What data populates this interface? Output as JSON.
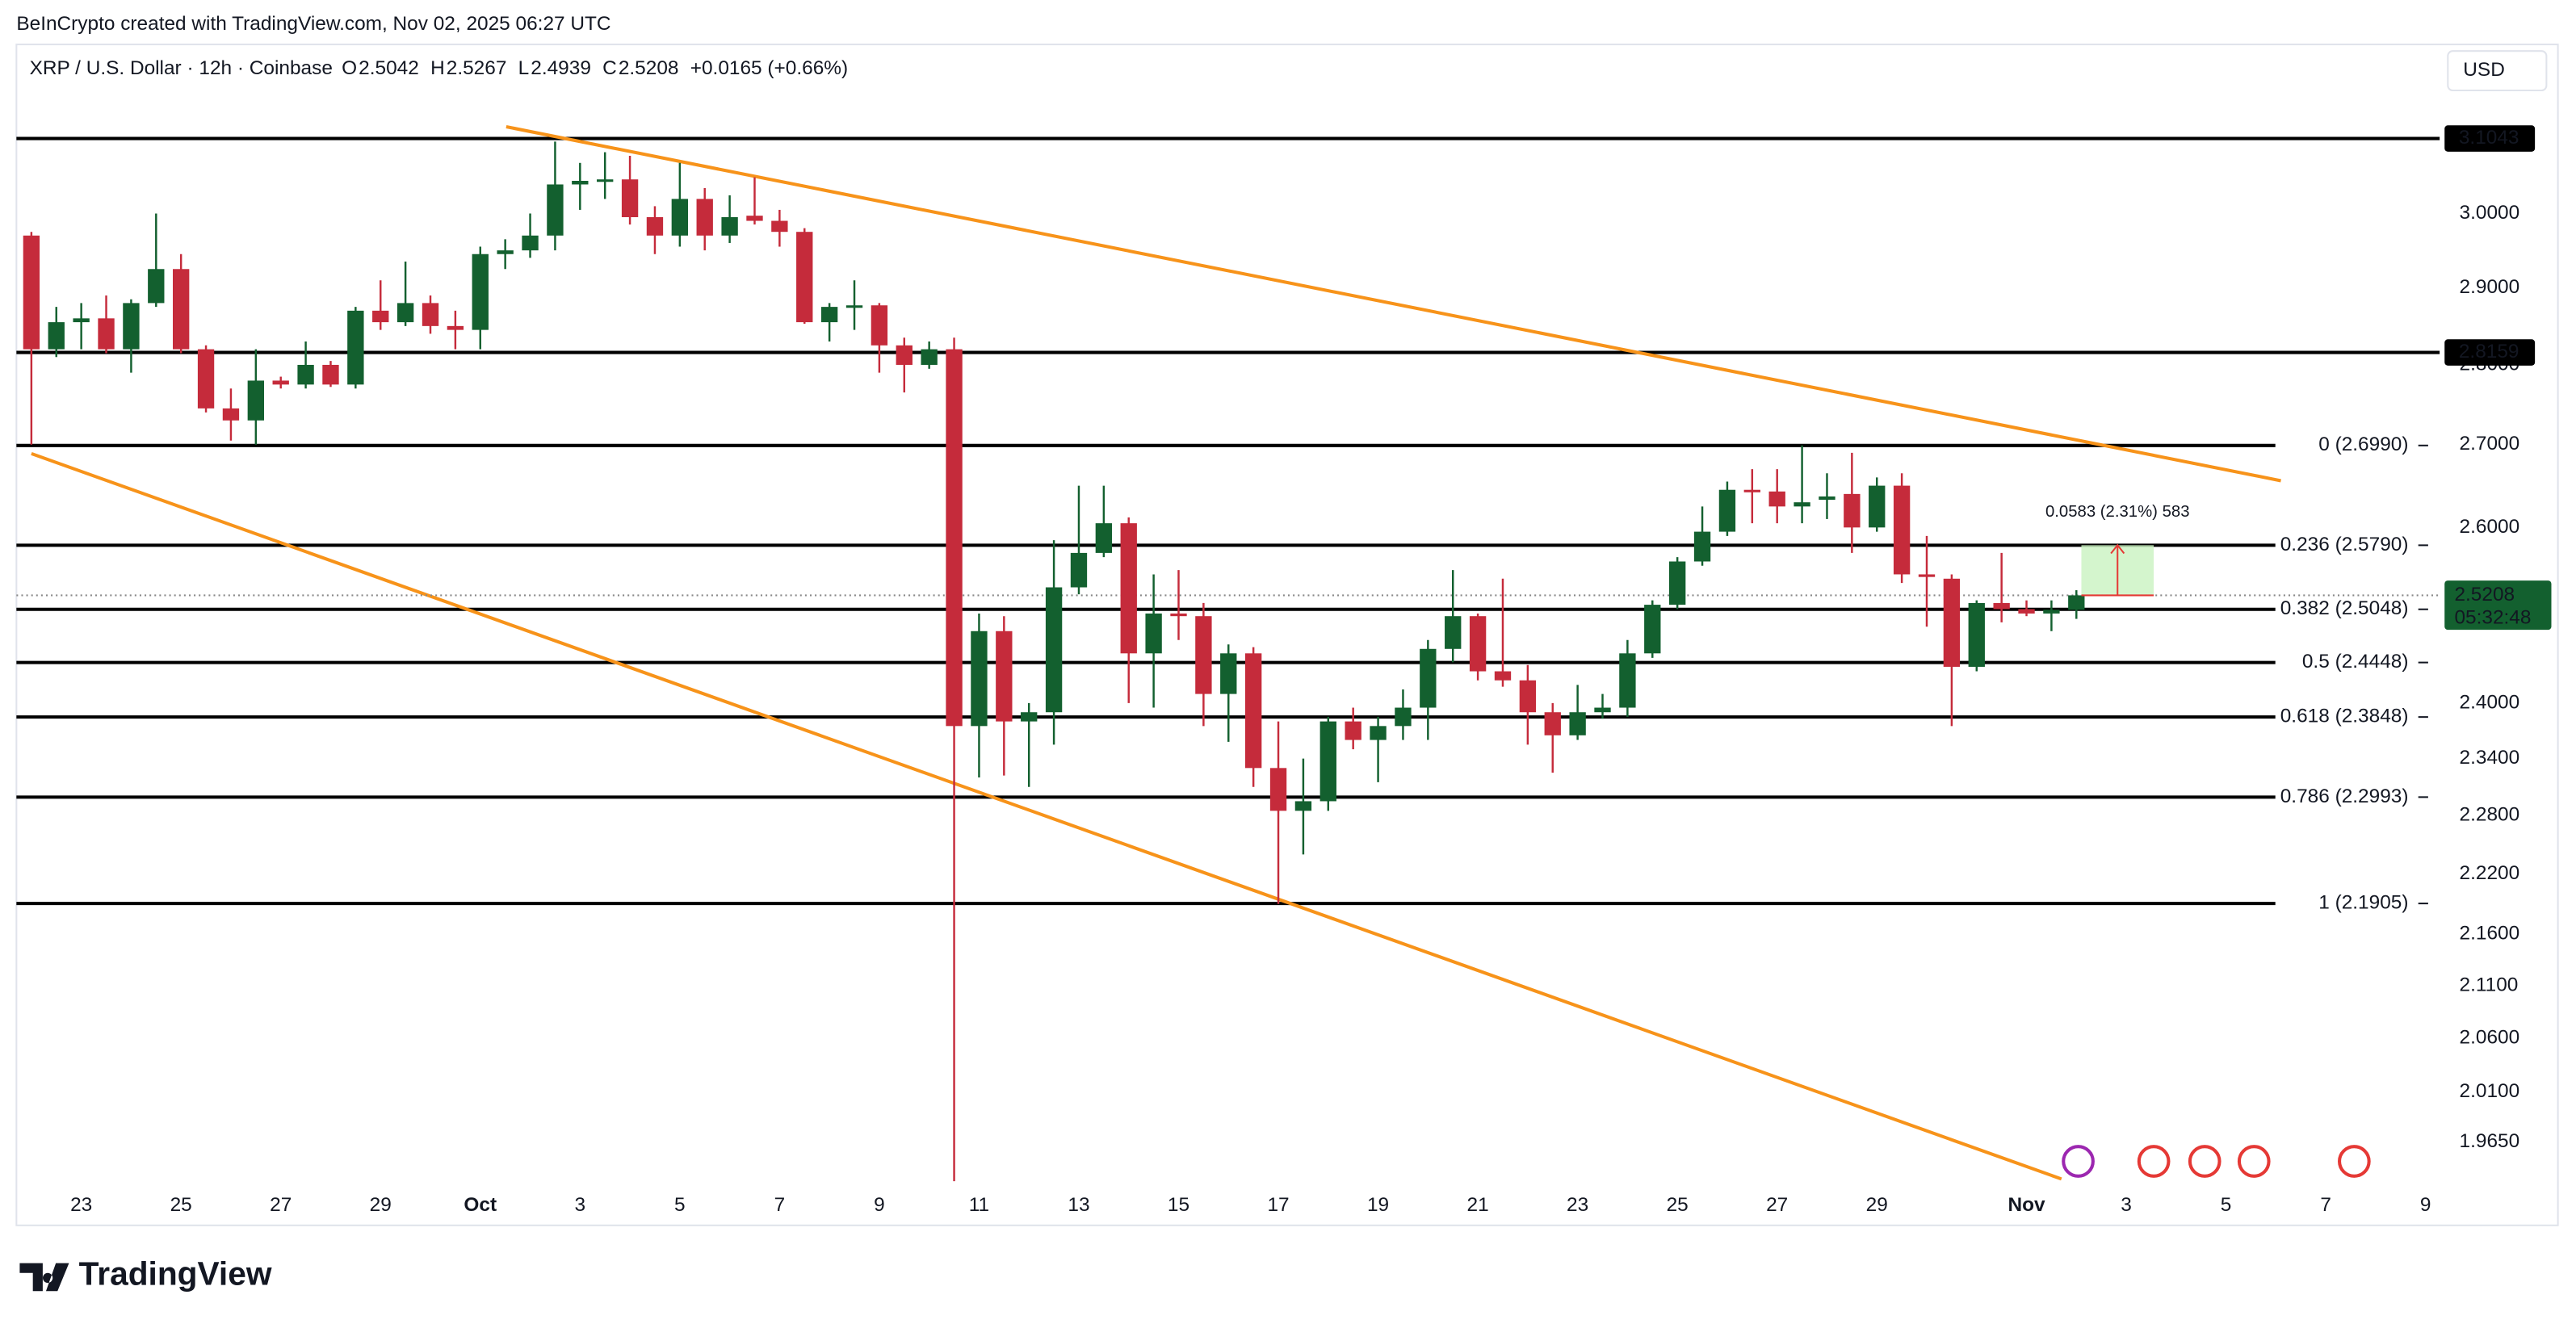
{
  "header": {
    "attribution": "BeInCrypto created with TradingView.com, Nov 02, 2025 06:27 UTC",
    "symbol": "XRP / U.S. Dollar · 12h · Coinbase",
    "ohlc_letters": [
      "O",
      "H",
      "L",
      "C"
    ],
    "change": "+0.0165 (+0.66%)",
    "currency": "USD"
  },
  "footer": {
    "brand": "TradingView"
  },
  "chart_data": {
    "type": "candlestick",
    "x": [
      0,
      1,
      2,
      3,
      4,
      5,
      6,
      7,
      8,
      9,
      10,
      11,
      12,
      13,
      14,
      15,
      16,
      17,
      18,
      19,
      20,
      21,
      22,
      23,
      24,
      25,
      26,
      27,
      28,
      29,
      30,
      31,
      32,
      33,
      34,
      35,
      36,
      37,
      38,
      39,
      40,
      41,
      42,
      43,
      44,
      45,
      46,
      47,
      48,
      49,
      50,
      51,
      52,
      53,
      54,
      55,
      56,
      57,
      58,
      59,
      60,
      61,
      62,
      63,
      64,
      65,
      66,
      67,
      68,
      69,
      70,
      71,
      72,
      73,
      74,
      75,
      76,
      77,
      78,
      79,
      80,
      81,
      82
    ],
    "open": [
      2.97,
      2.82,
      2.855,
      2.86,
      2.82,
      2.88,
      2.925,
      2.82,
      2.745,
      2.73,
      2.78,
      2.775,
      2.8,
      2.775,
      2.87,
      2.855,
      2.88,
      2.85,
      2.845,
      2.945,
      2.95,
      2.97,
      3.04,
      3.045,
      3.047,
      2.995,
      2.97,
      3.02,
      2.97,
      2.997,
      2.99,
      2.975,
      2.855,
      2.875,
      2.877,
      2.825,
      2.8,
      2.82,
      2.375,
      2.48,
      2.38,
      2.39,
      2.53,
      2.57,
      2.605,
      2.455,
      2.5,
      2.497,
      2.41,
      2.455,
      2.33,
      2.285,
      2.295,
      2.38,
      2.36,
      2.375,
      2.395,
      2.46,
      2.497,
      2.435,
      2.425,
      2.39,
      2.365,
      2.39,
      2.395,
      2.455,
      2.51,
      2.56,
      2.595,
      2.645,
      2.643,
      2.625,
      2.633,
      2.64,
      2.6,
      2.65,
      2.545,
      2.54,
      2.44,
      2.512,
      2.505,
      2.5,
      2.5042
    ],
    "high": [
      2.975,
      2.875,
      2.88,
      2.89,
      2.885,
      3.0,
      2.945,
      2.825,
      2.77,
      2.82,
      2.785,
      2.83,
      2.805,
      2.875,
      2.91,
      2.935,
      2.89,
      2.87,
      2.955,
      2.965,
      3.0,
      3.1,
      3.07,
      3.085,
      3.08,
      3.01,
      3.07,
      3.035,
      3.025,
      3.05,
      3.005,
      2.98,
      2.88,
      2.91,
      2.88,
      2.835,
      2.83,
      2.835,
      2.5,
      2.497,
      2.4,
      2.585,
      2.65,
      2.65,
      2.612,
      2.545,
      2.55,
      2.512,
      2.465,
      2.462,
      2.38,
      2.34,
      2.385,
      2.395,
      2.385,
      2.415,
      2.47,
      2.55,
      2.5,
      2.54,
      2.442,
      2.4,
      2.42,
      2.41,
      2.47,
      2.515,
      2.565,
      2.625,
      2.655,
      2.67,
      2.67,
      2.699,
      2.665,
      2.69,
      2.66,
      2.665,
      2.59,
      2.545,
      2.515,
      2.57,
      2.515,
      2.515,
      2.5267
    ],
    "low": [
      2.7,
      2.81,
      2.82,
      2.815,
      2.79,
      2.875,
      2.815,
      2.74,
      2.705,
      2.7,
      2.77,
      2.77,
      2.772,
      2.77,
      2.845,
      2.85,
      2.84,
      2.82,
      2.82,
      2.925,
      2.94,
      2.95,
      3.005,
      3.02,
      2.985,
      2.945,
      2.955,
      2.95,
      2.96,
      2.985,
      2.955,
      2.853,
      2.83,
      2.845,
      2.79,
      2.765,
      2.795,
      1.93,
      2.32,
      2.322,
      2.31,
      2.355,
      2.522,
      2.565,
      2.4,
      2.395,
      2.47,
      2.375,
      2.358,
      2.31,
      2.19,
      2.24,
      2.285,
      2.35,
      2.315,
      2.36,
      2.36,
      2.445,
      2.425,
      2.418,
      2.355,
      2.325,
      2.36,
      2.383,
      2.385,
      2.45,
      2.505,
      2.555,
      2.59,
      2.605,
      2.605,
      2.605,
      2.61,
      2.57,
      2.595,
      2.535,
      2.485,
      2.375,
      2.435,
      2.49,
      2.497,
      2.48,
      2.4939
    ],
    "close": [
      2.82,
      2.855,
      2.86,
      2.82,
      2.88,
      2.925,
      2.82,
      2.745,
      2.73,
      2.78,
      2.775,
      2.8,
      2.775,
      2.87,
      2.855,
      2.88,
      2.85,
      2.845,
      2.945,
      2.95,
      2.97,
      3.04,
      3.045,
      3.047,
      2.995,
      2.97,
      3.02,
      2.97,
      2.995,
      2.99,
      2.975,
      2.855,
      2.875,
      2.877,
      2.825,
      2.8,
      2.82,
      2.375,
      2.48,
      2.38,
      2.39,
      2.53,
      2.57,
      2.605,
      2.455,
      2.5,
      2.497,
      2.41,
      2.455,
      2.33,
      2.285,
      2.295,
      2.38,
      2.36,
      2.375,
      2.395,
      2.46,
      2.497,
      2.435,
      2.425,
      2.39,
      2.365,
      2.39,
      2.395,
      2.455,
      2.51,
      2.56,
      2.595,
      2.645,
      2.643,
      2.625,
      2.63,
      2.637,
      2.6,
      2.65,
      2.545,
      2.542,
      2.44,
      2.512,
      2.505,
      2.5,
      2.5042,
      2.5208
    ],
    "up_color": "#13602f",
    "down_color": "#c52b3b",
    "log": true,
    "grid": false,
    "xlim": [
      -0.6,
      96.5
    ],
    "xticks": [
      {
        "value": 2,
        "label": "23"
      },
      {
        "value": 6,
        "label": "25"
      },
      {
        "value": 10,
        "label": "27"
      },
      {
        "value": 14,
        "label": "29"
      },
      {
        "value": 18,
        "label": "Oct"
      },
      {
        "value": 22,
        "label": "3"
      },
      {
        "value": 26,
        "label": "5"
      },
      {
        "value": 30,
        "label": "7"
      },
      {
        "value": 34,
        "label": "9"
      },
      {
        "value": 38,
        "label": "11"
      },
      {
        "value": 42,
        "label": "13"
      },
      {
        "value": 46,
        "label": "15"
      },
      {
        "value": 50,
        "label": "17"
      },
      {
        "value": 54,
        "label": "19"
      },
      {
        "value": 58,
        "label": "21"
      },
      {
        "value": 62,
        "label": "23"
      },
      {
        "value": 66,
        "label": "25"
      },
      {
        "value": 70,
        "label": "27"
      },
      {
        "value": 74,
        "label": "29"
      },
      {
        "value": 80,
        "label": "Nov"
      },
      {
        "value": 84,
        "label": "3"
      },
      {
        "value": 88,
        "label": "5"
      },
      {
        "value": 92,
        "label": "7"
      },
      {
        "value": 96,
        "label": "9"
      }
    ],
    "ylim": [
      1.893,
      3.185
    ],
    "yticks": [
      {
        "value": 3.0,
        "label": "3.0000"
      },
      {
        "value": 2.9,
        "label": "2.9000"
      },
      {
        "value": 2.8,
        "label": "2.8000"
      },
      {
        "value": 2.7,
        "label": "2.7000"
      },
      {
        "value": 2.6,
        "label": "2.6000"
      },
      {
        "value": 2.4,
        "label": "2.4000"
      },
      {
        "value": 2.34,
        "label": "2.3400"
      },
      {
        "value": 2.28,
        "label": "2.2800"
      },
      {
        "value": 2.22,
        "label": "2.2200"
      },
      {
        "value": 2.16,
        "label": "2.1600"
      },
      {
        "value": 2.11,
        "label": "2.1100"
      },
      {
        "value": 2.06,
        "label": "2.0600"
      },
      {
        "value": 2.01,
        "label": "2.0100"
      },
      {
        "value": 1.965,
        "label": "1.9650"
      }
    ],
    "hlines": [
      3.1043,
      2.8159
    ],
    "fib_levels": [
      {
        "value": 2.699,
        "label": "0 (2.6990)"
      },
      {
        "value": 2.579,
        "label": "0.236 (2.5790)"
      },
      {
        "value": 2.5048,
        "label": "0.382 (2.5048)"
      },
      {
        "value": 2.4448,
        "label": "0.5 (2.4448)"
      },
      {
        "value": 2.3848,
        "label": "0.618 (2.3848)"
      },
      {
        "value": 2.2993,
        "label": "0.786 (2.2993)"
      },
      {
        "value": 2.1905,
        "label": "1 (2.1905)"
      }
    ],
    "trendline_color": "#f7931a",
    "trendlines": [
      [
        [
          19.04,
          3.121
        ],
        [
          90.2,
          2.656
        ]
      ],
      [
        [
          0,
          2.689
        ],
        [
          81.4,
          1.932
        ]
      ]
    ],
    "measure": {
      "label": "0.0583 (2.31%) 583",
      "x": [
        82.2,
        85.1
      ],
      "y": [
        2.5208,
        2.5791
      ]
    },
    "countdown": "05:32:48"
  }
}
